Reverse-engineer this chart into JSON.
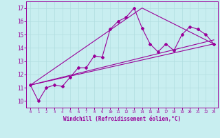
{
  "xlabel": "Windchill (Refroidissement éolien,°C)",
  "bg_color": "#c8eef0",
  "grid_color": "#b0dde0",
  "line_color": "#990099",
  "xlim": [
    -0.5,
    23.5
  ],
  "ylim": [
    9.5,
    17.5
  ],
  "xticks": [
    0,
    1,
    2,
    3,
    4,
    5,
    6,
    7,
    8,
    9,
    10,
    11,
    12,
    13,
    14,
    15,
    16,
    17,
    18,
    19,
    20,
    21,
    22,
    23
  ],
  "yticks": [
    10,
    11,
    12,
    13,
    14,
    15,
    16,
    17
  ],
  "main_x": [
    0,
    1,
    2,
    3,
    4,
    5,
    6,
    7,
    8,
    9,
    10,
    11,
    12,
    13,
    14,
    15,
    16,
    17,
    18,
    19,
    20,
    21,
    22,
    23
  ],
  "main_y": [
    11.2,
    10.0,
    11.0,
    11.2,
    11.1,
    11.8,
    12.5,
    12.5,
    13.4,
    13.3,
    15.4,
    16.0,
    16.3,
    17.0,
    15.5,
    14.3,
    13.7,
    14.3,
    13.8,
    15.0,
    15.6,
    15.4,
    15.0,
    14.3
  ],
  "trend1_x": [
    0,
    23
  ],
  "trend1_y": [
    11.2,
    14.3
  ],
  "trend2_x": [
    0,
    14,
    23
  ],
  "trend2_y": [
    11.2,
    17.0,
    14.3
  ],
  "trend3_x": [
    0,
    23
  ],
  "trend3_y": [
    11.2,
    14.6
  ]
}
